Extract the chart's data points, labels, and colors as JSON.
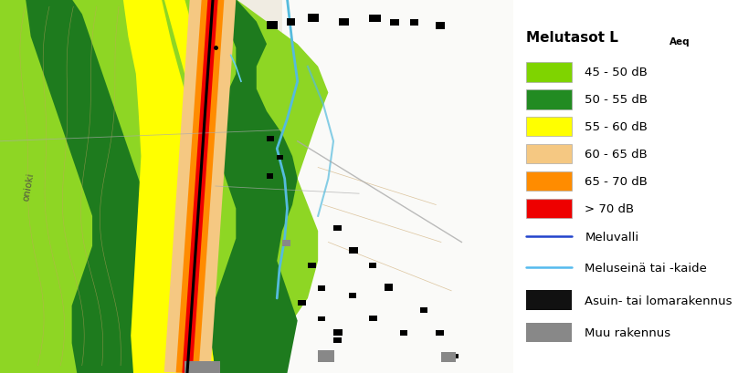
{
  "fig_width": 8.08,
  "fig_height": 4.1,
  "dpi": 100,
  "legend_title_main": "Melutasot L",
  "legend_title_sub": "Aeq",
  "legend_items_color": [
    {
      "color": "#7FD400",
      "label": "45 - 50 dB"
    },
    {
      "color": "#228B22",
      "label": "50 - 55 dB"
    },
    {
      "color": "#FFFF00",
      "label": "55 - 60 dB"
    },
    {
      "color": "#F5C882",
      "label": "60 - 65 dB"
    },
    {
      "color": "#FF8C00",
      "label": "65 - 70 dB"
    },
    {
      "color": "#EE0000",
      "label": "> 70 dB"
    }
  ],
  "legend_items_line": [
    {
      "color": "#2244CC",
      "label": "Meluvalli",
      "linewidth": 1.8
    },
    {
      "color": "#55BBEE",
      "label": "Meluseinä tai -kaide",
      "linewidth": 1.8
    }
  ],
  "legend_items_patch": [
    {
      "color": "#111111",
      "label": "Asuin- tai lomarakennus"
    },
    {
      "color": "#888888",
      "label": "Muu rakennus"
    }
  ],
  "bg_color_left": "#f5f0e8",
  "bg_color_right": "#ffffff",
  "map_split": 0.695
}
